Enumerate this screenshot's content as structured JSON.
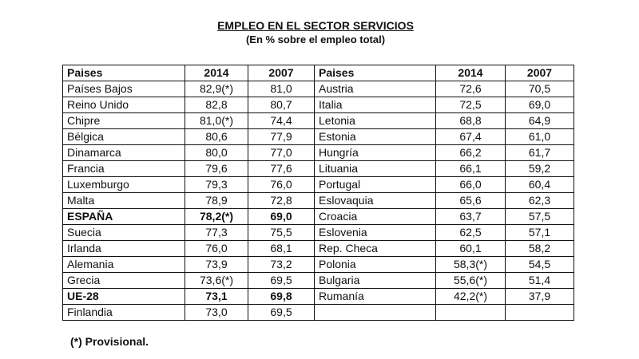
{
  "title": "EMPLEO EN EL SECTOR SERVICIOS",
  "subtitle": "(En % sobre el empleo total)",
  "headers": [
    "Paises",
    "2014",
    "2007",
    "Paises",
    "2014",
    "2007"
  ],
  "rows": [
    {
      "l": [
        "Países Bajos",
        "82,9(*)",
        "81,0"
      ],
      "r": [
        "Austria",
        "72,6",
        "70,5"
      ],
      "bold": false
    },
    {
      "l": [
        "Reino Unido",
        "82,8",
        "80,7"
      ],
      "r": [
        "Italia",
        "72,5",
        "69,0"
      ],
      "bold": false
    },
    {
      "l": [
        "Chipre",
        "81,0(*)",
        "74,4"
      ],
      "r": [
        "Letonia",
        "68,8",
        "64,9"
      ],
      "bold": false
    },
    {
      "l": [
        "Bélgica",
        "80,6",
        "77,9"
      ],
      "r": [
        "Estonia",
        "67,4",
        "61,0"
      ],
      "bold": false
    },
    {
      "l": [
        "Dinamarca",
        "80,0",
        "77,0"
      ],
      "r": [
        "Hungría",
        "66,2",
        "61,7"
      ],
      "bold": false
    },
    {
      "l": [
        "Francia",
        "79,6",
        "77,6"
      ],
      "r": [
        "Lituania",
        "66,1",
        "59,2"
      ],
      "bold": false
    },
    {
      "l": [
        "Luxemburgo",
        "79,3",
        "76,0"
      ],
      "r": [
        "Portugal",
        "66,0",
        "60,4"
      ],
      "bold": false
    },
    {
      "l": [
        "Malta",
        "78,9",
        "72,8"
      ],
      "r": [
        "Eslovaquia",
        "65,6",
        "62,3"
      ],
      "bold": false
    },
    {
      "l": [
        "ESPAÑA",
        "78,2(*)",
        "69,0"
      ],
      "r": [
        "Croacia",
        "63,7",
        "57,5"
      ],
      "bold": true
    },
    {
      "l": [
        "Suecia",
        "77,3",
        "75,5"
      ],
      "r": [
        "Eslovenia",
        "62,5",
        "57,1"
      ],
      "bold": false
    },
    {
      "l": [
        "Irlanda",
        "76,0",
        "68,1"
      ],
      "r": [
        "Rep. Checa",
        "60,1",
        "58,2"
      ],
      "bold": false
    },
    {
      "l": [
        "Alemania",
        "73,9",
        "73,2"
      ],
      "r": [
        "Polonia",
        "58,3(*)",
        "54,5"
      ],
      "bold": false
    },
    {
      "l": [
        "Grecia",
        "73,6(*)",
        "69,5"
      ],
      "r": [
        "Bulgaria",
        "55,6(*)",
        "51,4"
      ],
      "bold": false
    },
    {
      "l": [
        "UE-28",
        "73,1",
        "69,8"
      ],
      "r": [
        "Rumanía",
        "42,2(*)",
        "37,9"
      ],
      "bold": true
    },
    {
      "l": [
        "Finlandia",
        "73,0",
        "69,5"
      ],
      "r": [
        "",
        "",
        ""
      ],
      "bold": false
    }
  ],
  "footnote": "(*) Provisional."
}
